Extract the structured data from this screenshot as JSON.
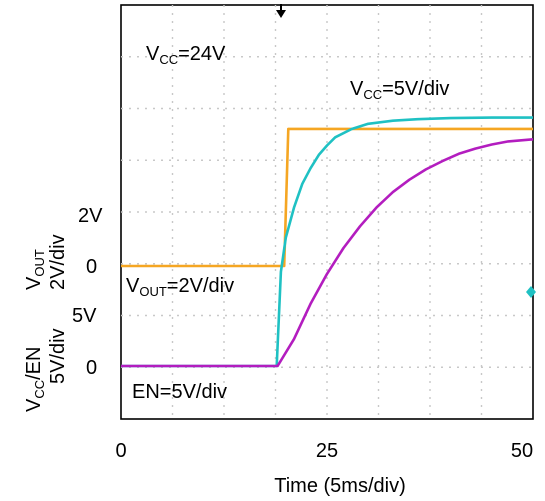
{
  "chart_data": {
    "type": "line",
    "x_unit_label": "Time (5ms/div)",
    "x_ticks": [
      {
        "value": 0,
        "label": "0"
      },
      {
        "value": 25,
        "label": "25"
      },
      {
        "value": 50,
        "label": "50"
      }
    ],
    "xlim": [
      0,
      50
    ],
    "grid": true,
    "annotations": {
      "vcc_note": "V_CC=24V",
      "vcc_scale": "V_CC=5V/div",
      "vout_scale": "V_OUT=2V/div",
      "en_scale": "EN=5V/div"
    },
    "left_axes": [
      {
        "name": "vout",
        "label_main": "V",
        "label_sub": "OUT",
        "label_units": "2V/div",
        "ticks": [
          {
            "value": 0,
            "label": "0"
          },
          {
            "value": 2,
            "label": "2V"
          }
        ]
      },
      {
        "name": "vcc_en",
        "label_main": "V",
        "label_sub": "CC",
        "label_tail": "/EN",
        "label_units": "5V/div",
        "ticks": [
          {
            "value": 0,
            "label": "0"
          },
          {
            "value": 5,
            "label": "5V"
          }
        ]
      }
    ],
    "series": [
      {
        "name": "V_OUT",
        "color": "#f5a623",
        "x": [
          0,
          10,
          19.8,
          20.3,
          30,
          40,
          50
        ],
        "y": [
          0,
          0,
          0,
          5.3,
          5.3,
          5.3,
          5.3
        ]
      },
      {
        "name": "V_CC",
        "color": "#1fc1c3",
        "x": [
          0,
          18.9,
          19.4,
          20,
          21,
          22,
          23,
          24,
          25,
          26,
          28,
          30,
          33,
          36,
          40,
          45,
          50
        ],
        "y": [
          0,
          0,
          9.1,
          12.4,
          15.3,
          17.6,
          19.1,
          20.4,
          21.3,
          22.1,
          22.9,
          23.4,
          23.7,
          23.85,
          23.95,
          24,
          24
        ]
      },
      {
        "name": "EN",
        "color": "#b31dbf",
        "x": [
          0,
          19,
          21,
          23,
          25,
          27,
          29,
          31,
          33,
          35,
          37,
          39,
          41,
          43,
          45,
          47,
          50
        ],
        "y": [
          0,
          0,
          2.6,
          6,
          8.9,
          11.4,
          13.5,
          15.3,
          16.8,
          18.0,
          19.0,
          19.8,
          20.5,
          21.0,
          21.4,
          21.7,
          21.9
        ]
      }
    ]
  },
  "colors": {
    "trigger_marker": "#000000",
    "edge_marker": "#1fc1c3",
    "grid": "#c8c8c8"
  }
}
